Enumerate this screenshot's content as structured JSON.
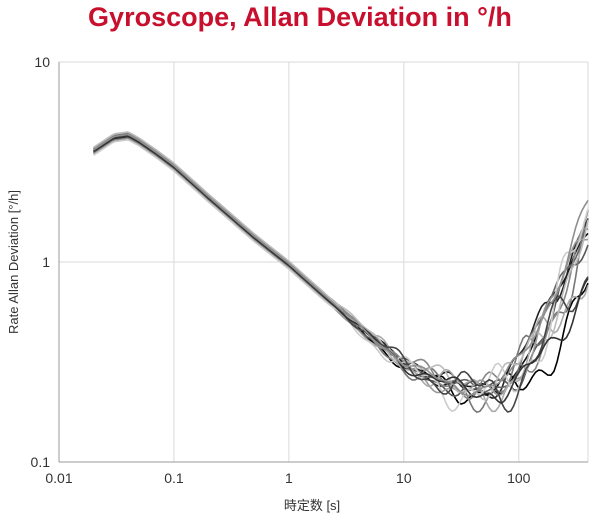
{
  "chart_data": {
    "type": "line",
    "title": "Gyroscope, Allan Deviation in °/h",
    "xlabel": "時定数 [s]",
    "ylabel": "Rate Allan Deviation [°/h]",
    "x_scale": "log",
    "y_scale": "log",
    "xlim": [
      0.01,
      400
    ],
    "ylim": [
      0.1,
      10
    ],
    "grid": true,
    "x_ticks": [
      "0.01",
      "0.1",
      "1",
      "10",
      "100"
    ],
    "y_ticks": [
      "10",
      "1",
      "0.1"
    ],
    "series_note": "many overlapping gray and black traces",
    "base_curve": {
      "x": [
        0.02,
        0.03,
        0.04,
        0.05,
        0.07,
        0.1,
        0.2,
        0.5,
        1,
        2,
        5,
        10,
        20,
        30,
        50,
        70,
        100,
        200,
        400
      ],
      "y": [
        3.6,
        4.2,
        4.3,
        4.0,
        3.5,
        3.0,
        2.1,
        1.33,
        0.97,
        0.68,
        0.43,
        0.31,
        0.255,
        0.235,
        0.23,
        0.24,
        0.29,
        0.6,
        1.5
      ]
    },
    "series": [
      {
        "color": "#111111",
        "xmin": 0.02,
        "xmax": 400,
        "y_scale": 1.0,
        "tail": 1.04,
        "wobble": 0.02
      },
      {
        "color": "#222222",
        "xmin": 0.02,
        "xmax": 400,
        "y_scale": 1.02,
        "tail": 1.18,
        "wobble": 0.03
      },
      {
        "color": "#000000",
        "xmin": 0.02,
        "xmax": 400,
        "y_scale": 0.98,
        "tail": 0.48,
        "wobble": 0.04
      },
      {
        "color": "#555555",
        "xmin": 0.02,
        "xmax": 400,
        "y_scale": 0.99,
        "tail": 0.85,
        "wobble": 0.03
      },
      {
        "color": "#666666",
        "xmin": 0.02,
        "xmax": 400,
        "y_scale": 1.01,
        "tail": 1.12,
        "wobble": 0.02
      },
      {
        "color": "#777777",
        "xmin": 0.02,
        "xmax": 400,
        "y_scale": 0.97,
        "tail": 0.95,
        "wobble": 0.05
      },
      {
        "color": "#888888",
        "xmin": 0.02,
        "xmax": 400,
        "y_scale": 1.03,
        "tail": 0.78,
        "wobble": 0.04
      },
      {
        "color": "#999999",
        "xmin": 0.02,
        "xmax": 400,
        "y_scale": 0.96,
        "tail": 1.08,
        "wobble": 0.03
      },
      {
        "color": "#aaaaaa",
        "xmin": 0.02,
        "xmax": 400,
        "y_scale": 1.0,
        "tail": 0.7,
        "wobble": 0.05
      },
      {
        "color": "#bbbbbb",
        "xmin": 0.02,
        "xmax": 400,
        "y_scale": 1.04,
        "tail": 0.9,
        "wobble": 0.04
      },
      {
        "color": "#cccccc",
        "xmin": 0.02,
        "xmax": 400,
        "y_scale": 0.95,
        "tail": 1.0,
        "wobble": 0.06
      },
      {
        "color": "#444444",
        "xmin": 0.02,
        "xmax": 400,
        "y_scale": 1.0,
        "tail": 0.62,
        "wobble": 0.05
      },
      {
        "color": "#333333",
        "xmin": 0.02,
        "xmax": 400,
        "y_scale": 0.99,
        "tail": 0.55,
        "wobble": 0.03
      },
      {
        "color": "#8f8f8f",
        "xmin": 0.02,
        "xmax": 400,
        "y_scale": 1.01,
        "tail": 1.25,
        "wobble": 0.02
      }
    ]
  }
}
